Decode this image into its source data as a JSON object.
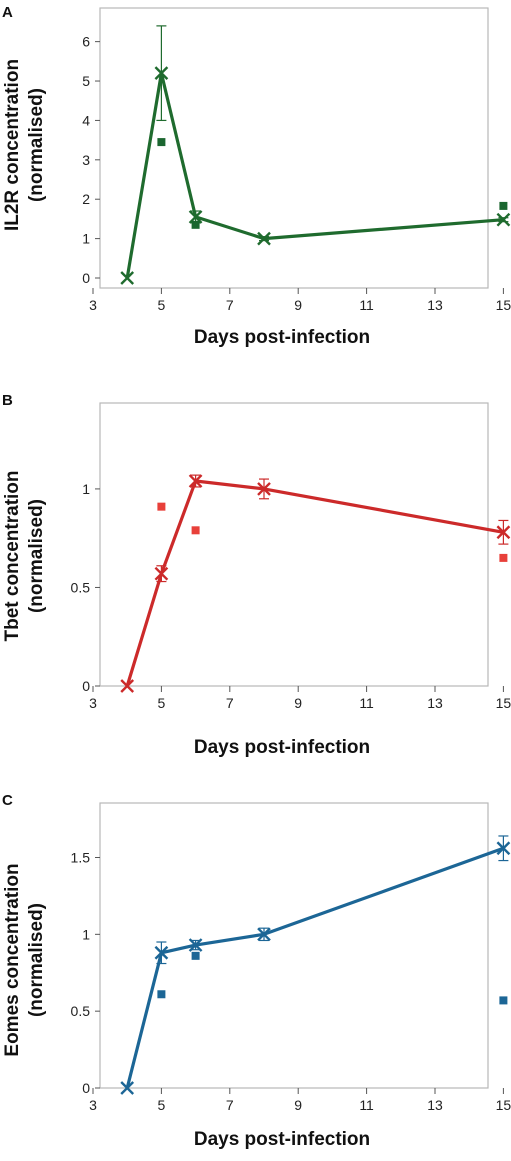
{
  "chart_data": [
    {
      "type": "line",
      "panel": "A",
      "xlabel": "Days post-infection",
      "ylabel_line1": "IL2R concentration",
      "ylabel_line2": "(normalised)",
      "xlim": [
        3,
        16
      ],
      "ylim": [
        0,
        6.6
      ],
      "xticks": [
        "3",
        "5",
        "7",
        "9",
        "11",
        "13",
        "15"
      ],
      "yticks": [
        "0",
        "1",
        "2",
        "3",
        "4",
        "5",
        "6"
      ],
      "color": "#1f6b2e",
      "marker_color": "#1b6630",
      "series": [
        {
          "kind": "mean",
          "x": [
            4,
            5,
            6,
            8,
            15
          ],
          "y": [
            0,
            5.2,
            1.55,
            1.0,
            1.48
          ],
          "err": [
            0,
            1.2,
            0.15,
            0.05,
            0.05
          ]
        },
        {
          "kind": "points",
          "x": [
            5,
            6,
            15
          ],
          "y": [
            3.45,
            1.35,
            1.83
          ]
        }
      ]
    },
    {
      "type": "line",
      "panel": "B",
      "xlabel": "Days post-infection",
      "ylabel_line1": "Tbet concentration",
      "ylabel_line2": "(normalised)",
      "xlim": [
        3,
        16
      ],
      "ylim": [
        0,
        1.37
      ],
      "xticks": [
        "3",
        "5",
        "7",
        "9",
        "11",
        "13",
        "15"
      ],
      "yticks": [
        "0",
        "0.5",
        "1"
      ],
      "ytick_values": [
        0,
        0.5,
        1
      ],
      "color": "#cc2a2a",
      "marker_color": "#e8403a",
      "series": [
        {
          "kind": "mean",
          "x": [
            4,
            5,
            6,
            8,
            15
          ],
          "y": [
            0,
            0.57,
            1.04,
            1.0,
            0.78
          ],
          "err": [
            0,
            0.04,
            0.03,
            0.05,
            0.06
          ]
        },
        {
          "kind": "points",
          "x": [
            5,
            6,
            15
          ],
          "y": [
            0.91,
            0.79,
            0.65
          ]
        }
      ]
    },
    {
      "type": "line",
      "panel": "C",
      "xlabel": "Days post-infection",
      "ylabel_line1": "Eomes concentration",
      "ylabel_line2": "(normalised)",
      "xlim": [
        3,
        16
      ],
      "ylim": [
        0,
        1.77
      ],
      "xticks": [
        "3",
        "5",
        "7",
        "9",
        "11",
        "13",
        "15"
      ],
      "yticks": [
        "0",
        "0.5",
        "1",
        "1.5"
      ],
      "ytick_values": [
        0,
        0.5,
        1,
        1.5
      ],
      "color": "#1c6696",
      "marker_color": "#1c6696",
      "series": [
        {
          "kind": "mean",
          "x": [
            4,
            5,
            6,
            8,
            15
          ],
          "y": [
            0,
            0.88,
            0.93,
            1.0,
            1.56
          ],
          "err": [
            0,
            0.07,
            0.03,
            0.04,
            0.08
          ]
        },
        {
          "kind": "points",
          "x": [
            5,
            6,
            15
          ],
          "y": [
            0.61,
            0.86,
            0.57
          ]
        }
      ]
    }
  ]
}
